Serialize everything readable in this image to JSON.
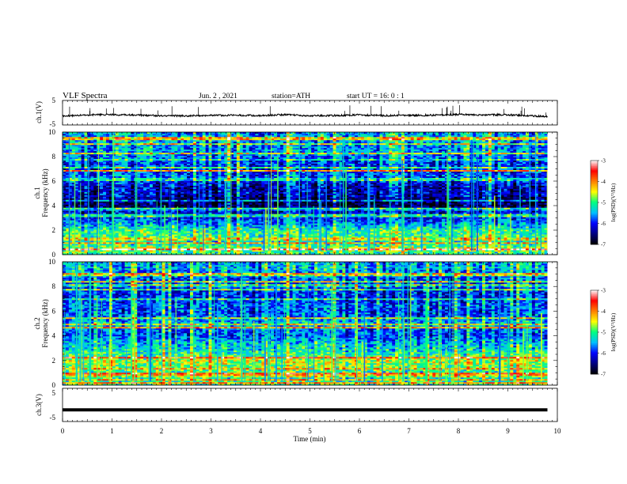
{
  "header": {
    "title": "VLF  Spectra",
    "date": "Jun. 2  , 2021",
    "station": "station=ATH",
    "start": "start  UT  =    16: 0   : 1"
  },
  "colors": {
    "waveform": "#000000",
    "colormap": [
      "#000000",
      "#00007f",
      "#0000ff",
      "#00bfff",
      "#00ff80",
      "#ffff00",
      "#ff8000",
      "#ff0000",
      "#ffffff"
    ]
  },
  "chart_data": [
    {
      "id": "ch1-waveform",
      "type": "line",
      "ylabel": "ch.1(V)",
      "ylim": [
        -5,
        5
      ],
      "yticks": [
        "5",
        "-5"
      ],
      "xlim": [
        0,
        10
      ],
      "series": [
        {
          "x": [
            0,
            0.5,
            1,
            1.5,
            2,
            2.5,
            3,
            3.5,
            4,
            4.5,
            5,
            5.5,
            6,
            6.5,
            7,
            7.5,
            8,
            8.5,
            9,
            9.5,
            9.8
          ],
          "values": [
            -1.4,
            -0.9,
            -0.8,
            -1,
            -1.2,
            -1.3,
            -1.1,
            -1,
            -1.2,
            -0.8,
            -1.3,
            -1.1,
            -0.9,
            -1.2,
            -1.1,
            -1,
            -0.7,
            -0.9,
            -0.8,
            -1.3,
            -1.5
          ]
        }
      ]
    },
    {
      "id": "ch1-spectrogram",
      "type": "heatmap",
      "ylabel": "ch.1\nFrequency (kHz)",
      "ylim": [
        0,
        10
      ],
      "yticks": [
        "10",
        "8",
        "6",
        "4",
        "2",
        "0"
      ],
      "xlim": [
        0,
        10
      ],
      "data_end_min": 9.8,
      "colorbar": {
        "label": "log(PSD)(V²/Hz)",
        "range": [
          -7,
          -3
        ],
        "ticks": [
          "-3",
          "-4",
          "-5",
          "-6",
          "-7"
        ]
      },
      "profile_khz": [
        0,
        0.5,
        1,
        1.5,
        2,
        2.5,
        3,
        3.5,
        4,
        4.5,
        5,
        5.5,
        6,
        6.5,
        7,
        7.5,
        8,
        8.5,
        9,
        9.5,
        10
      ],
      "profile_logpsd": [
        -5.2,
        -4.6,
        -5.3,
        -5.0,
        -5.0,
        -5.6,
        -6.0,
        -6.2,
        -6.7,
        -6.6,
        -6.2,
        -6.3,
        -6.0,
        -5.8,
        -5.9,
        -5.9,
        -5.7,
        -5.6,
        -5.6,
        -5.4,
        -5.6
      ]
    },
    {
      "id": "ch2-spectrogram",
      "type": "heatmap",
      "ylabel": "ch.2\nFrequency (kHz)",
      "ylim": [
        0,
        10
      ],
      "yticks": [
        "10",
        "8",
        "6",
        "4",
        "2",
        "0"
      ],
      "xlim": [
        0,
        10
      ],
      "data_end_min": 9.8,
      "colorbar": {
        "label": "log(PSD)(V²/Hz)",
        "range": [
          -7,
          -3
        ],
        "ticks": [
          "-3",
          "-4",
          "-5",
          "-6",
          "-7"
        ]
      },
      "profile_khz": [
        0,
        0.5,
        1,
        1.5,
        2,
        2.5,
        3,
        3.5,
        4,
        4.5,
        5,
        5.5,
        6,
        6.5,
        7,
        7.5,
        8,
        8.5,
        9,
        9.5,
        10
      ],
      "profile_logpsd": [
        -5.0,
        -5.2,
        -5.1,
        -4.8,
        -4.6,
        -5.1,
        -5.3,
        -5.5,
        -5.9,
        -5.8,
        -5.4,
        -5.8,
        -5.9,
        -5.8,
        -6.0,
        -6.0,
        -6.0,
        -5.9,
        -5.7,
        -5.5,
        -5.6
      ]
    },
    {
      "id": "ch3-waveform",
      "type": "line",
      "ylabel": "ch.3(V)",
      "ylim": [
        -5,
        5
      ],
      "yticks": [
        "5",
        "-5"
      ],
      "xlim": [
        0,
        10
      ],
      "series": [
        {
          "x": [
            0,
            9.8
          ],
          "values": [
            -1.5,
            -1.5
          ]
        }
      ]
    }
  ],
  "x_axis": {
    "label": "Time  (min)",
    "ticks": [
      "0",
      "1",
      "2",
      "3",
      "4",
      "5",
      "6",
      "7",
      "8",
      "9",
      "10"
    ]
  }
}
